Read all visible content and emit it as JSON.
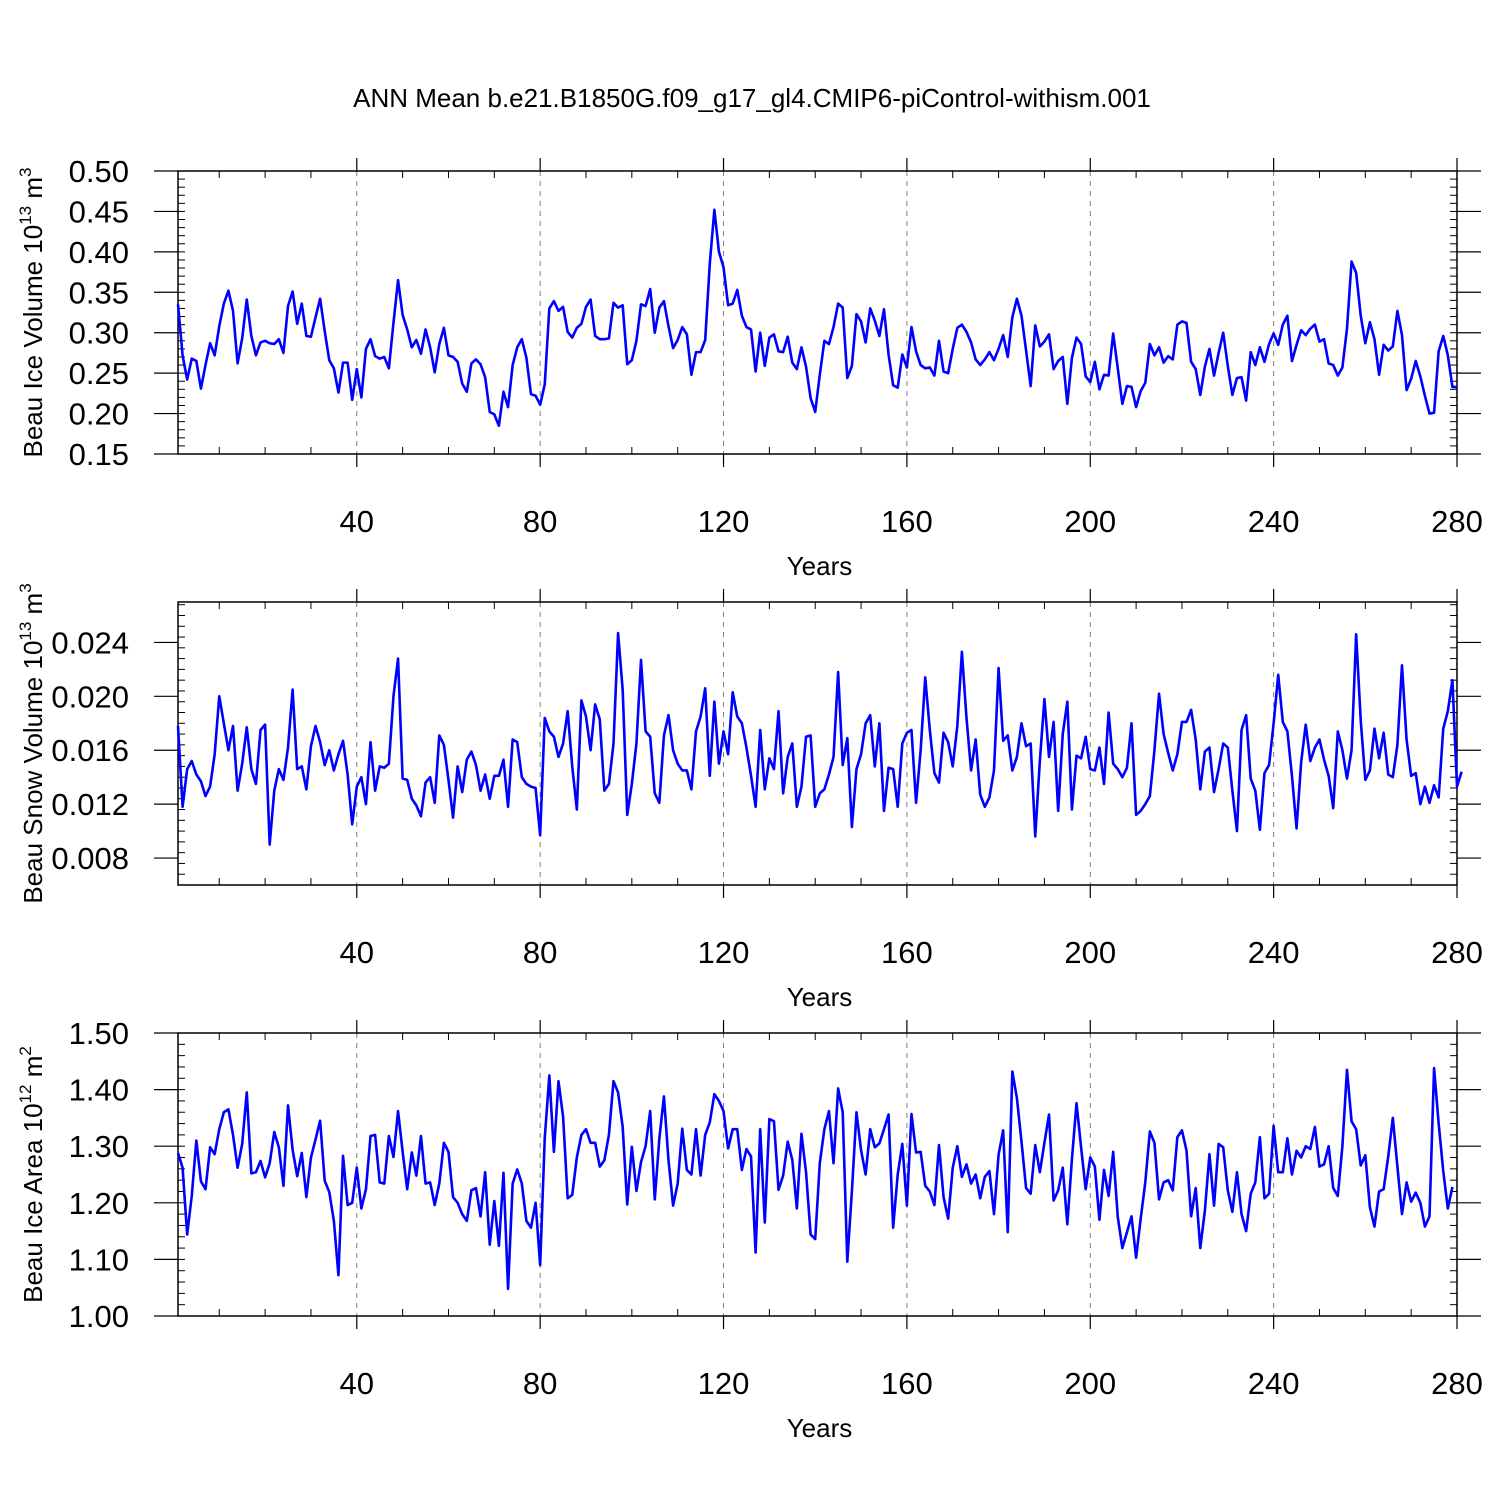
{
  "title": "ANN Mean b.e21.B1850G.f09_g17_gl4.CMIP6-piControl-withism.001",
  "colors": {
    "line": "#0000ff",
    "axis": "#000000",
    "grid": "#808080"
  },
  "chart_data": [
    {
      "type": "line",
      "ylabel": {
        "text": "Beau Ice Volume 10",
        "sup": "13",
        "unit": "m",
        "unit_sup": "3"
      },
      "xlabel": "Years",
      "xlim": [
        1,
        280
      ],
      "ylim": [
        0.15,
        0.5
      ],
      "xticks": [
        40,
        80,
        120,
        160,
        200,
        240,
        280
      ],
      "yticks": [
        0.15,
        0.2,
        0.25,
        0.3,
        0.35,
        0.4,
        0.45,
        0.5
      ],
      "ytick_labels": [
        "0.15",
        "0.20",
        "0.25",
        "0.30",
        "0.35",
        "0.40",
        "0.45",
        "0.50"
      ],
      "grid": "vertical dashed at x ticks",
      "series": [
        {
          "x_start": 1,
          "values": [
            0.335,
            0.272,
            0.242,
            0.268,
            0.265,
            0.231,
            0.26,
            0.287,
            0.272,
            0.308,
            0.336,
            0.352,
            0.327,
            0.262,
            0.293,
            0.341,
            0.296,
            0.272,
            0.288,
            0.29,
            0.287,
            0.286,
            0.292,
            0.275,
            0.333,
            0.351,
            0.311,
            0.336,
            0.296,
            0.295,
            0.319,
            0.342,
            0.302,
            0.266,
            0.256,
            0.226,
            0.263,
            0.263,
            0.217,
            0.255,
            0.22,
            0.28,
            0.292,
            0.271,
            0.268,
            0.27,
            0.256,
            0.312,
            0.365,
            0.322,
            0.304,
            0.282,
            0.291,
            0.274,
            0.304,
            0.282,
            0.251,
            0.286,
            0.306,
            0.272,
            0.27,
            0.264,
            0.237,
            0.227,
            0.262,
            0.267,
            0.261,
            0.245,
            0.202,
            0.199,
            0.185,
            0.227,
            0.208,
            0.26,
            0.282,
            0.292,
            0.269,
            0.224,
            0.222,
            0.211,
            0.236,
            0.33,
            0.339,
            0.327,
            0.332,
            0.301,
            0.294,
            0.306,
            0.311,
            0.332,
            0.341,
            0.296,
            0.292,
            0.292,
            0.293,
            0.337,
            0.331,
            0.334,
            0.261,
            0.266,
            0.29,
            0.335,
            0.333,
            0.354,
            0.3,
            0.331,
            0.339,
            0.308,
            0.281,
            0.291,
            0.307,
            0.298,
            0.248,
            0.276,
            0.276,
            0.291,
            0.385,
            0.452,
            0.4,
            0.381,
            0.334,
            0.336,
            0.353,
            0.321,
            0.307,
            0.304,
            0.252,
            0.3,
            0.259,
            0.294,
            0.298,
            0.277,
            0.276,
            0.295,
            0.263,
            0.255,
            0.282,
            0.258,
            0.219,
            0.202,
            0.248,
            0.29,
            0.286,
            0.307,
            0.336,
            0.331,
            0.244,
            0.259,
            0.323,
            0.314,
            0.288,
            0.33,
            0.315,
            0.296,
            0.329,
            0.273,
            0.235,
            0.232,
            0.273,
            0.257,
            0.307,
            0.277,
            0.26,
            0.256,
            0.257,
            0.247,
            0.29,
            0.252,
            0.25,
            0.28,
            0.306,
            0.31,
            0.301,
            0.288,
            0.267,
            0.26,
            0.267,
            0.276,
            0.266,
            0.28,
            0.297,
            0.27,
            0.319,
            0.342,
            0.321,
            0.278,
            0.234,
            0.309,
            0.283,
            0.289,
            0.298,
            0.255,
            0.265,
            0.27,
            0.212,
            0.269,
            0.294,
            0.286,
            0.246,
            0.239,
            0.264,
            0.23,
            0.248,
            0.247,
            0.299,
            0.256,
            0.212,
            0.234,
            0.233,
            0.208,
            0.228,
            0.238,
            0.286,
            0.272,
            0.282,
            0.263,
            0.271,
            0.267,
            0.31,
            0.314,
            0.312,
            0.264,
            0.255,
            0.223,
            0.258,
            0.28,
            0.247,
            0.275,
            0.3,
            0.259,
            0.223,
            0.244,
            0.245,
            0.216,
            0.276,
            0.26,
            0.282,
            0.264,
            0.286,
            0.299,
            0.285,
            0.31,
            0.321,
            0.265,
            0.285,
            0.303,
            0.297,
            0.305,
            0.31,
            0.289,
            0.292,
            0.262,
            0.26,
            0.247,
            0.257,
            0.305,
            0.388,
            0.374,
            0.321,
            0.287,
            0.313,
            0.292,
            0.248,
            0.285,
            0.278,
            0.283,
            0.327,
            0.297,
            0.229,
            0.243,
            0.265,
            0.246,
            0.222,
            0.2,
            0.201,
            0.277,
            0.296,
            0.272,
            0.233,
            0.233
          ]
        }
      ]
    },
    {
      "type": "line",
      "ylabel": {
        "text": "Beau Snow Volume 10",
        "sup": "13",
        "unit": "m",
        "unit_sup": "3"
      },
      "xlabel": "Years",
      "xlim": [
        1,
        280
      ],
      "ylim": [
        0.006,
        0.027
      ],
      "xticks": [
        40,
        80,
        120,
        160,
        200,
        240,
        280
      ],
      "yticks": [
        0.008,
        0.012,
        0.016,
        0.02,
        0.024
      ],
      "ytick_labels": [
        "0.008",
        "0.012",
        "0.016",
        "0.020",
        "0.024"
      ],
      "grid": "vertical dashed at x ticks",
      "series": [
        {
          "x_start": 1,
          "values": [
            0.0178,
            0.0118,
            0.0146,
            0.0152,
            0.0142,
            0.0137,
            0.0126,
            0.0133,
            0.0157,
            0.02,
            0.018,
            0.016,
            0.0178,
            0.013,
            0.015,
            0.0177,
            0.0146,
            0.0135,
            0.0175,
            0.0179,
            0.009,
            0.013,
            0.0146,
            0.0138,
            0.0162,
            0.0205,
            0.0146,
            0.0148,
            0.0131,
            0.0163,
            0.0178,
            0.0166,
            0.0149,
            0.016,
            0.0145,
            0.0157,
            0.0167,
            0.0142,
            0.0105,
            0.0133,
            0.014,
            0.012,
            0.0166,
            0.013,
            0.0148,
            0.0147,
            0.015,
            0.02,
            0.0228,
            0.0139,
            0.0138,
            0.0124,
            0.0119,
            0.0111,
            0.0136,
            0.014,
            0.0121,
            0.0171,
            0.0164,
            0.0138,
            0.011,
            0.0148,
            0.0129,
            0.0153,
            0.0159,
            0.0149,
            0.013,
            0.0142,
            0.0124,
            0.0141,
            0.0141,
            0.0153,
            0.0118,
            0.0168,
            0.0166,
            0.014,
            0.0135,
            0.0133,
            0.0132,
            0.0097,
            0.0184,
            0.0174,
            0.017,
            0.0155,
            0.0165,
            0.0189,
            0.0148,
            0.0116,
            0.0197,
            0.0185,
            0.016,
            0.0194,
            0.0183,
            0.013,
            0.0135,
            0.0165,
            0.0247,
            0.0205,
            0.0112,
            0.0135,
            0.0165,
            0.0227,
            0.0174,
            0.017,
            0.0128,
            0.0121,
            0.0171,
            0.0186,
            0.016,
            0.015,
            0.0145,
            0.0145,
            0.0131,
            0.0174,
            0.0185,
            0.0206,
            0.0141,
            0.0196,
            0.015,
            0.0174,
            0.0157,
            0.0203,
            0.0185,
            0.018,
            0.0162,
            0.0141,
            0.0118,
            0.0175,
            0.0131,
            0.0154,
            0.0146,
            0.0189,
            0.0128,
            0.0155,
            0.0165,
            0.0118,
            0.0133,
            0.017,
            0.0171,
            0.0118,
            0.0128,
            0.0131,
            0.0142,
            0.0155,
            0.0218,
            0.0149,
            0.0169,
            0.0103,
            0.0146,
            0.0157,
            0.018,
            0.0186,
            0.0148,
            0.018,
            0.0115,
            0.0147,
            0.0146,
            0.0118,
            0.0165,
            0.0173,
            0.0175,
            0.0121,
            0.016,
            0.0214,
            0.0175,
            0.0143,
            0.0136,
            0.0173,
            0.0166,
            0.0148,
            0.0178,
            0.0233,
            0.0184,
            0.0145,
            0.0168,
            0.0127,
            0.0118,
            0.0125,
            0.0145,
            0.0221,
            0.0167,
            0.0171,
            0.0145,
            0.0155,
            0.018,
            0.0163,
            0.0165,
            0.0096,
            0.0152,
            0.0198,
            0.0155,
            0.0181,
            0.0115,
            0.0172,
            0.0196,
            0.0116,
            0.0156,
            0.0154,
            0.017,
            0.0146,
            0.0145,
            0.0162,
            0.0135,
            0.0188,
            0.015,
            0.0146,
            0.014,
            0.0147,
            0.018,
            0.0112,
            0.0115,
            0.012,
            0.0126,
            0.016,
            0.0202,
            0.0172,
            0.0158,
            0.0145,
            0.0157,
            0.0181,
            0.0181,
            0.019,
            0.0168,
            0.0131,
            0.0159,
            0.0162,
            0.0129,
            0.0146,
            0.0165,
            0.0162,
            0.013,
            0.01,
            0.0175,
            0.0186,
            0.0139,
            0.013,
            0.0101,
            0.0143,
            0.0149,
            0.018,
            0.0216,
            0.0181,
            0.0174,
            0.0141,
            0.0102,
            0.0151,
            0.0179,
            0.0152,
            0.0162,
            0.0168,
            0.0153,
            0.0141,
            0.0117,
            0.0174,
            0.016,
            0.0139,
            0.016,
            0.0246,
            0.0182,
            0.0138,
            0.0145,
            0.0176,
            0.0154,
            0.0173,
            0.0142,
            0.014,
            0.0164,
            0.0223,
            0.0168,
            0.0141,
            0.0143,
            0.012,
            0.0133,
            0.0121,
            0.0134,
            0.0125,
            0.0176,
            0.0189,
            0.0212,
            0.0133,
            0.0144
          ]
        }
      ]
    },
    {
      "type": "line",
      "ylabel": {
        "text": "Beau Ice Area 10",
        "sup": "12",
        "unit": "m",
        "unit_sup": "2"
      },
      "xlabel": "Years",
      "xlim": [
        1,
        280
      ],
      "ylim": [
        1.0,
        1.5
      ],
      "xticks": [
        40,
        80,
        120,
        160,
        200,
        240,
        280
      ],
      "yticks": [
        1.0,
        1.1,
        1.2,
        1.3,
        1.4,
        1.5
      ],
      "ytick_labels": [
        "1.00",
        "1.10",
        "1.20",
        "1.30",
        "1.40",
        "1.50"
      ],
      "grid": "vertical dashed at x ticks",
      "series": [
        {
          "x_start": 1,
          "values": [
            1.288,
            1.262,
            1.144,
            1.212,
            1.31,
            1.238,
            1.224,
            1.298,
            1.286,
            1.33,
            1.36,
            1.365,
            1.32,
            1.262,
            1.304,
            1.395,
            1.252,
            1.254,
            1.274,
            1.245,
            1.27,
            1.325,
            1.298,
            1.23,
            1.372,
            1.294,
            1.247,
            1.288,
            1.21,
            1.28,
            1.312,
            1.345,
            1.239,
            1.219,
            1.168,
            1.072,
            1.283,
            1.196,
            1.2,
            1.262,
            1.19,
            1.224,
            1.318,
            1.32,
            1.236,
            1.234,
            1.318,
            1.281,
            1.362,
            1.29,
            1.224,
            1.289,
            1.248,
            1.318,
            1.234,
            1.236,
            1.196,
            1.234,
            1.306,
            1.29,
            1.21,
            1.2,
            1.18,
            1.168,
            1.222,
            1.226,
            1.176,
            1.254,
            1.126,
            1.203,
            1.124,
            1.253,
            1.048,
            1.234,
            1.259,
            1.234,
            1.168,
            1.156,
            1.2,
            1.09,
            1.314,
            1.425,
            1.29,
            1.415,
            1.352,
            1.208,
            1.214,
            1.28,
            1.32,
            1.33,
            1.306,
            1.306,
            1.264,
            1.275,
            1.32,
            1.415,
            1.395,
            1.334,
            1.197,
            1.299,
            1.221,
            1.272,
            1.3,
            1.362,
            1.206,
            1.313,
            1.388,
            1.275,
            1.195,
            1.234,
            1.331,
            1.258,
            1.25,
            1.33,
            1.248,
            1.32,
            1.342,
            1.392,
            1.38,
            1.362,
            1.296,
            1.33,
            1.33,
            1.258,
            1.295,
            1.282,
            1.112,
            1.33,
            1.165,
            1.348,
            1.344,
            1.223,
            1.248,
            1.308,
            1.276,
            1.19,
            1.322,
            1.254,
            1.144,
            1.136,
            1.27,
            1.33,
            1.362,
            1.27,
            1.402,
            1.36,
            1.096,
            1.22,
            1.36,
            1.293,
            1.25,
            1.33,
            1.298,
            1.305,
            1.33,
            1.356,
            1.156,
            1.25,
            1.304,
            1.195,
            1.357,
            1.289,
            1.29,
            1.23,
            1.22,
            1.196,
            1.302,
            1.21,
            1.172,
            1.262,
            1.3,
            1.246,
            1.268,
            1.234,
            1.25,
            1.208,
            1.246,
            1.256,
            1.18,
            1.285,
            1.328,
            1.148,
            1.432,
            1.385,
            1.308,
            1.226,
            1.216,
            1.302,
            1.254,
            1.306,
            1.356,
            1.204,
            1.222,
            1.262,
            1.162,
            1.277,
            1.376,
            1.298,
            1.224,
            1.28,
            1.264,
            1.17,
            1.258,
            1.212,
            1.29,
            1.175,
            1.12,
            1.148,
            1.176,
            1.103,
            1.172,
            1.236,
            1.326,
            1.306,
            1.206,
            1.236,
            1.24,
            1.222,
            1.316,
            1.328,
            1.292,
            1.176,
            1.226,
            1.12,
            1.186,
            1.286,
            1.195,
            1.304,
            1.298,
            1.222,
            1.184,
            1.254,
            1.18,
            1.15,
            1.216,
            1.236,
            1.316,
            1.208,
            1.216,
            1.336,
            1.254,
            1.254,
            1.314,
            1.25,
            1.292,
            1.28,
            1.3,
            1.295,
            1.334,
            1.264,
            1.268,
            1.3,
            1.226,
            1.212,
            1.3,
            1.435,
            1.344,
            1.33,
            1.266,
            1.284,
            1.192,
            1.158,
            1.22,
            1.224,
            1.282,
            1.35,
            1.264,
            1.18,
            1.236,
            1.202,
            1.218,
            1.2,
            1.158,
            1.176,
            1.438,
            1.34,
            1.256,
            1.19,
            1.228
          ]
        }
      ]
    }
  ]
}
